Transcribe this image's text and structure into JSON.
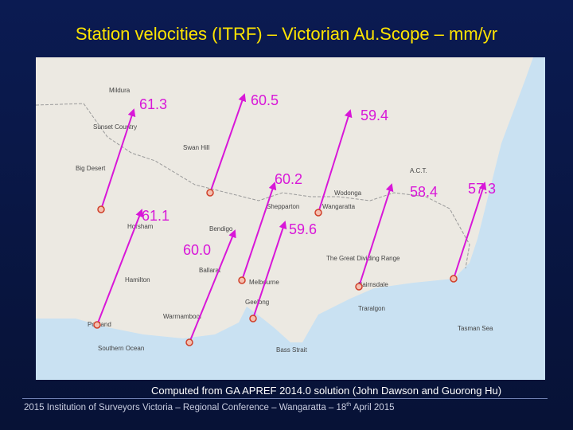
{
  "title": "Station velocities (ITRF) – Victorian Au.Scope – mm/yr",
  "stations": [
    {
      "velocity": "61.3"
    },
    {
      "velocity": "60.5"
    },
    {
      "velocity": "59.4"
    },
    {
      "velocity": "60.2"
    },
    {
      "velocity": "61.1"
    },
    {
      "velocity": "59.6"
    },
    {
      "velocity": "60.0"
    },
    {
      "velocity": "58.4"
    },
    {
      "velocity": "57.3"
    }
  ],
  "places": [
    "Mildura",
    "Sunset Country",
    "Swan Hill",
    "Big Desert",
    "Horsham",
    "Bendigo",
    "Shepparton",
    "Wangaratta",
    "Wodonga",
    "A.C.T.",
    "Ballarat",
    "Hamilton",
    "Melbourne",
    "Geelong",
    "Portland",
    "Warrnambool",
    "Southern Ocean",
    "Bass Strait",
    "Bairnsdale",
    "Traralgon",
    "Tasman Sea",
    "The Great Dividing Range"
  ],
  "caption": "Computed from GA APREF 2014.0 solution (John Dawson and Guorong Hu)",
  "footer": {
    "before": "2015 Institution of Surveyors Victoria – Regional Conference – Wangaratta – 18",
    "sup": "th",
    "after": " April 2015"
  }
}
